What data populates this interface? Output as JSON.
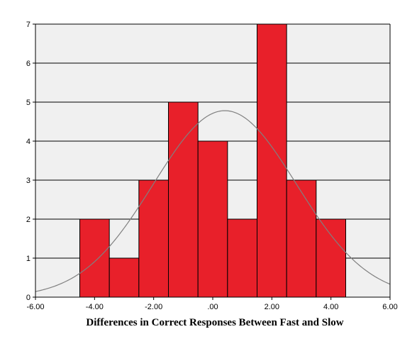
{
  "chart_data": {
    "type": "bar",
    "subtype": "histogram",
    "title": "",
    "xlabel": "Differences in Correct Responses Between Fast and Slow",
    "ylabel": "",
    "xlim": [
      -6,
      6
    ],
    "ylim": [
      0,
      7
    ],
    "x_ticks": [
      -6,
      -4,
      -2,
      0,
      2,
      4,
      6
    ],
    "x_tick_labels": [
      "-6.00",
      "-4.00",
      "-2.00",
      ".00",
      "2.00",
      "4.00",
      "6.00"
    ],
    "y_ticks": [
      0,
      1,
      2,
      3,
      4,
      5,
      6,
      7
    ],
    "y_tick_labels": [
      "0",
      "1",
      "2",
      "3",
      "4",
      "5",
      "6",
      "7"
    ],
    "bins": [
      {
        "x0": -4.5,
        "x1": -3.5,
        "count": 2
      },
      {
        "x0": -3.5,
        "x1": -2.5,
        "count": 1
      },
      {
        "x0": -2.5,
        "x1": -1.5,
        "count": 3
      },
      {
        "x0": -1.5,
        "x1": -0.5,
        "count": 5
      },
      {
        "x0": -0.5,
        "x1": 0.5,
        "count": 4
      },
      {
        "x0": 0.5,
        "x1": 1.5,
        "count": 2
      },
      {
        "x0": 1.5,
        "x1": 2.5,
        "count": 7
      },
      {
        "x0": 2.5,
        "x1": 3.5,
        "count": 3
      },
      {
        "x0": 3.5,
        "x1": 4.5,
        "count": 2
      }
    ],
    "normal_curve": {
      "mean": 0.41,
      "sd": 2.42,
      "n": 29,
      "bin_width": 1
    },
    "grid": "horizontal",
    "colors": {
      "bar_fill": "#e8202a",
      "bar_stroke": "#000000",
      "plot_background": "#f0f0f0",
      "grid": "#000000",
      "curve": "#808080"
    }
  }
}
